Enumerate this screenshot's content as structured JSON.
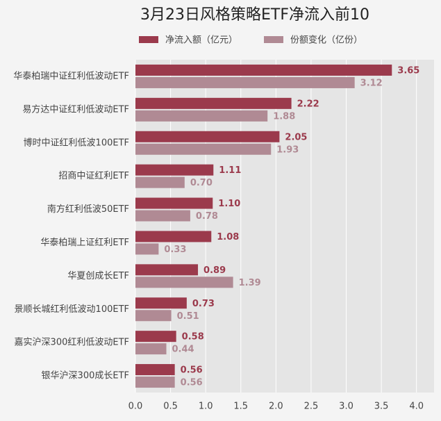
{
  "chart_data": {
    "type": "hbar",
    "title": "3月23日风格策略ETF净流入前10",
    "categories": [
      "华泰柏瑞中证红利低波动ETF",
      "易方达中证红利低波动ETF",
      "博时中证红利低波100ETF",
      "招商中证红利ETF",
      "南方红利低波50ETF",
      "华泰柏瑞上证红利ETF",
      "华夏创成长ETF",
      "景顺长城红利低波动100ETF",
      "嘉实沪深300红利低波动ETF",
      "银华沪深300成长ETF"
    ],
    "series": [
      {
        "name": "净流入额（亿元）",
        "color": "#9b3a4c",
        "values": [
          3.65,
          2.22,
          2.05,
          1.11,
          1.1,
          1.08,
          0.89,
          0.73,
          0.58,
          0.56
        ],
        "value_labels": [
          "3.65",
          "2.22",
          "2.05",
          "1.11",
          "1.10",
          "1.08",
          "0.89",
          "0.73",
          "0.58",
          "0.56"
        ]
      },
      {
        "name": "份额变化（亿份）",
        "color": "#b08a94",
        "values": [
          3.12,
          1.88,
          1.93,
          0.7,
          0.78,
          0.33,
          1.39,
          0.51,
          0.44,
          0.56
        ],
        "value_labels": [
          "3.12",
          "1.88",
          "1.93",
          "0.70",
          "0.78",
          "0.33",
          "1.39",
          "0.51",
          "0.44",
          "0.56"
        ]
      }
    ],
    "xlim": [
      0,
      4.25
    ],
    "xticks": [
      {
        "value": 0,
        "label": "0.0"
      },
      0.5,
      {
        "value": 1,
        "label": "1.0"
      },
      1.5,
      {
        "value": 2,
        "label": "2.0"
      },
      2.5,
      {
        "value": 3,
        "label": "3.0"
      },
      3.5,
      {
        "value": 4,
        "label": "4.0"
      }
    ],
    "grid": true
  }
}
